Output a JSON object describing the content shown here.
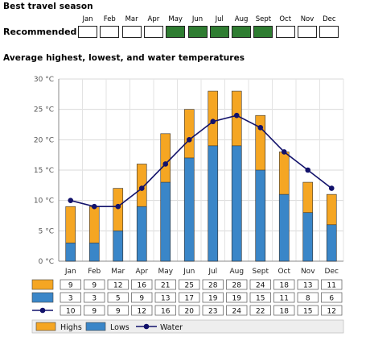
{
  "page": {
    "best_season_title": "Best travel season",
    "recommended_label": "Recommended",
    "chart_title": "Average highest, lowest, and water temperatures"
  },
  "season": {
    "months": [
      "Jan",
      "Feb",
      "Mar",
      "Apr",
      "May",
      "Jun",
      "Jul",
      "Aug",
      "Sept",
      "Oct",
      "Nov",
      "Dec"
    ],
    "recommended": [
      false,
      false,
      false,
      false,
      true,
      true,
      true,
      true,
      true,
      false,
      false,
      false
    ],
    "recommended_color": "#2f7d32"
  },
  "chart_data": {
    "type": "bar",
    "title": "Average highest, lowest, and water temperatures",
    "categories": [
      "Jan",
      "Feb",
      "Mar",
      "Apr",
      "May",
      "Jun",
      "Jul",
      "Aug",
      "Sept",
      "Oct",
      "Nov",
      "Dec"
    ],
    "y_unit": "°C",
    "ylim": [
      0,
      30
    ],
    "y_ticks": [
      "0 °C",
      "5 °C",
      "10 °C",
      "15 °C",
      "20 °C",
      "25 °C",
      "30 °C"
    ],
    "grid": true,
    "legend_placement": "bottom",
    "series": [
      {
        "name": "Highs",
        "kind": "bar",
        "color": "#f5a623",
        "values": [
          9,
          9,
          12,
          16,
          21,
          25,
          28,
          28,
          24,
          18,
          13,
          11
        ]
      },
      {
        "name": "Lows",
        "kind": "bar",
        "color": "#3a86c8",
        "values": [
          3,
          3,
          5,
          9,
          13,
          17,
          19,
          19,
          15,
          11,
          8,
          6
        ]
      },
      {
        "name": "Water",
        "kind": "line",
        "color": "#12126b",
        "values": [
          10,
          9,
          9,
          12,
          16,
          20,
          23,
          24,
          22,
          18,
          15,
          12
        ]
      }
    ]
  }
}
